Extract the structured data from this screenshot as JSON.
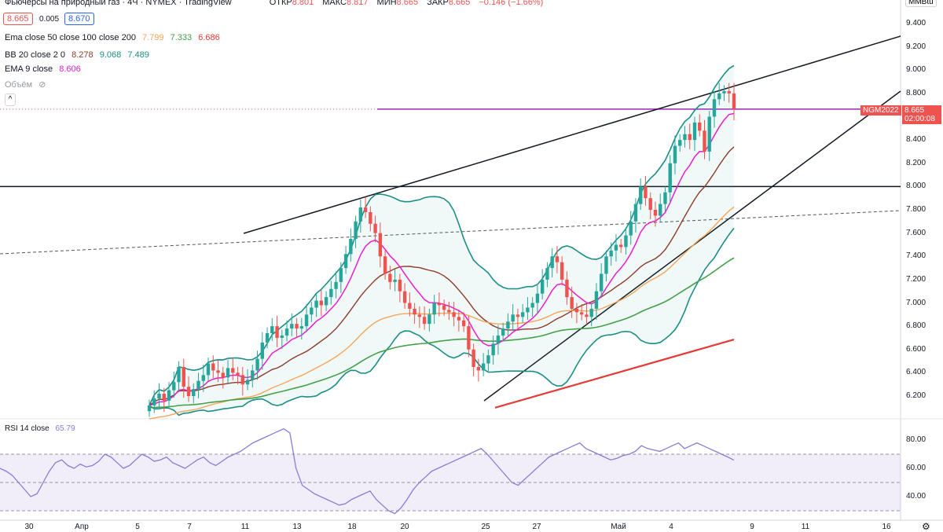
{
  "header": {
    "title": "Фьючерсы на природный газ · 4Ч · NYMEX · TradingView",
    "ohlc": [
      {
        "label": "ОТКР",
        "value": "8.801"
      },
      {
        "label": "МАКС",
        "value": "8.817"
      },
      {
        "label": "МИН",
        "value": "8.665"
      },
      {
        "label": "ЗАКР",
        "value": "8.665"
      },
      {
        "label": "",
        "value": "−0.146 (−1.66%)"
      }
    ],
    "bid": "8.665",
    "spread": "0.005",
    "ask": "8.670"
  },
  "indicators": {
    "ema": {
      "name": "Ema close 50 close 100 close 200",
      "v1": "7.799",
      "v2": "7.333",
      "v3": "6.686"
    },
    "bb": {
      "name": "BB 20 close 2 0",
      "v1": "8.278",
      "v2": "9.068",
      "v3": "7.489"
    },
    "ema9": {
      "name": "EMA 9 close",
      "v1": "8.606"
    },
    "volume": "Объём",
    "rsi": {
      "name": "RSI 14 close",
      "v1": "65.79"
    }
  },
  "price_axis": {
    "unit": "MMBtu",
    "ticks": [
      "9.400",
      "9.200",
      "9.000",
      "8.800",
      "8.600",
      "8.400",
      "8.200",
      "8.000",
      "7.800",
      "7.600",
      "7.400",
      "7.200",
      "7.000",
      "6.800",
      "6.600",
      "6.400",
      "6.200"
    ],
    "last_price": "8.665",
    "symbol_tag": "NGM2022",
    "countdown": "02:00:08"
  },
  "rsi_axis": {
    "ticks": [
      "80.00",
      "60.00",
      "40.00"
    ]
  },
  "time_axis": {
    "ticks": [
      "30",
      "Апр",
      "5",
      "7",
      "11",
      "13",
      "18",
      "20",
      "25",
      "27",
      "Май",
      "4",
      "9",
      "11",
      "16"
    ]
  },
  "colors": {
    "up": "#26a69a",
    "down": "#ef5350",
    "ema50": "#f5a55a",
    "ema100": "#43a047",
    "ema200": "#e53935",
    "bb_basis": "#8d3a2a",
    "bb_band": "#1b8e86",
    "ema9": "#e91ecf",
    "rsi": "#8e79d6",
    "last": "#ef5350"
  },
  "chart_data": {
    "type": "candlestick",
    "symbol": "NGM2022",
    "timeframe": "4H",
    "ylim": [
      6.1,
      9.5
    ],
    "x_ticks": [
      "30",
      "Апр",
      "5",
      "7",
      "11",
      "13",
      "18",
      "20",
      "25",
      "27",
      "Май",
      "4",
      "9",
      "11",
      "16"
    ],
    "closes": [
      6.12,
      6.18,
      6.22,
      6.16,
      6.25,
      6.32,
      6.45,
      6.28,
      6.2,
      6.26,
      6.33,
      6.38,
      6.48,
      6.42,
      6.4,
      6.36,
      6.44,
      6.4,
      6.38,
      6.3,
      6.34,
      6.42,
      6.52,
      6.66,
      6.74,
      6.8,
      6.7,
      6.72,
      6.78,
      6.82,
      6.78,
      6.8,
      6.9,
      6.96,
      7.02,
      6.98,
      7.05,
      7.12,
      7.18,
      7.3,
      7.42,
      7.55,
      7.7,
      7.82,
      7.78,
      7.68,
      7.6,
      7.4,
      7.25,
      7.18,
      7.2,
      7.1,
      7.0,
      6.95,
      6.9,
      6.88,
      6.82,
      6.9,
      7.0,
      6.98,
      6.94,
      6.92,
      6.88,
      6.85,
      6.8,
      6.6,
      6.45,
      6.42,
      6.48,
      6.55,
      6.65,
      6.72,
      6.78,
      6.84,
      6.9,
      6.88,
      6.92,
      6.96,
      7.0,
      7.08,
      7.2,
      7.3,
      7.4,
      7.35,
      7.2,
      7.05,
      6.95,
      6.92,
      6.9,
      6.88,
      6.95,
      7.1,
      7.25,
      7.4,
      7.45,
      7.5,
      7.48,
      7.58,
      7.7,
      7.85,
      8.0,
      7.9,
      7.8,
      7.75,
      7.85,
      7.95,
      8.2,
      8.35,
      8.4,
      8.45,
      8.4,
      8.55,
      8.48,
      8.3,
      8.6,
      8.75,
      8.8,
      8.82,
      8.8,
      8.665
    ],
    "ema9_last": 8.606,
    "ema50_last": 7.799,
    "ema100_last": 7.333,
    "ema200_last": 6.686,
    "bb_basis_last": 8.278,
    "bb_upper_last": 9.068,
    "bb_lower_last": 7.489,
    "horizontal_levels": [
      8.0,
      8.665
    ],
    "rsi": {
      "ylim": [
        25,
        90
      ],
      "levels": [
        70,
        50,
        30
      ],
      "values": [
        60,
        58,
        55,
        50,
        45,
        40,
        42,
        50,
        58,
        64,
        66,
        62,
        60,
        63,
        61,
        62,
        65,
        70,
        68,
        64,
        60,
        62,
        66,
        70,
        68,
        65,
        66,
        68,
        64,
        62,
        60,
        63,
        66,
        68,
        64,
        62,
        65,
        68,
        70,
        72,
        75,
        78,
        80,
        82,
        84,
        86,
        88,
        85,
        60,
        48,
        45,
        42,
        40,
        38,
        36,
        34,
        35,
        38,
        40,
        42,
        44,
        38,
        34,
        30,
        28,
        32,
        38,
        45,
        50,
        54,
        58,
        60,
        62,
        64,
        66,
        68,
        70,
        72,
        74,
        70,
        65,
        60,
        55,
        50,
        48,
        52,
        56,
        60,
        64,
        68,
        70,
        72,
        74,
        76,
        78,
        74,
        72,
        70,
        68,
        66,
        67,
        69,
        70,
        72,
        76,
        74,
        73,
        72,
        74,
        76,
        78,
        74,
        76,
        78,
        76,
        74,
        72,
        70,
        68,
        65.79
      ]
    }
  }
}
